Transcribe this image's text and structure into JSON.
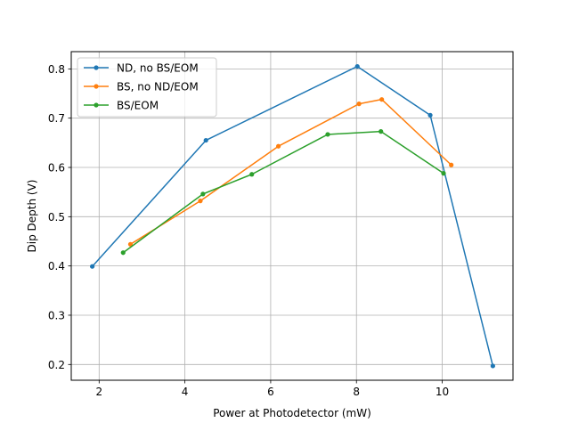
{
  "chart_data": {
    "type": "line",
    "title": "",
    "xlabel": "Power at Photodetector (mW)",
    "ylabel": "Dip Depth (V)",
    "xlim": [
      1.35,
      11.65
    ],
    "ylim": [
      0.168,
      0.835
    ],
    "xticks": [
      2,
      4,
      6,
      8,
      10
    ],
    "yticks": [
      0.2,
      0.3,
      0.4,
      0.5,
      0.6,
      0.7,
      0.8
    ],
    "grid": true,
    "legend_position": "top-left",
    "series": [
      {
        "name": "ND, no BS/EOM",
        "color": "#1f77b4",
        "x": [
          1.84,
          4.49,
          8.02,
          9.72,
          11.18
        ],
        "y": [
          0.399,
          0.655,
          0.805,
          0.706,
          0.197
        ]
      },
      {
        "name": "BS, no ND/EOM",
        "color": "#ff7f0e",
        "x": [
          2.73,
          4.36,
          6.18,
          8.06,
          8.59,
          10.21
        ],
        "y": [
          0.444,
          0.532,
          0.643,
          0.729,
          0.738,
          0.605
        ]
      },
      {
        "name": "BS/EOM",
        "color": "#2ca02c",
        "x": [
          2.56,
          4.42,
          5.56,
          7.33,
          8.57,
          10.03
        ],
        "y": [
          0.427,
          0.546,
          0.586,
          0.667,
          0.673,
          0.588
        ]
      }
    ]
  }
}
